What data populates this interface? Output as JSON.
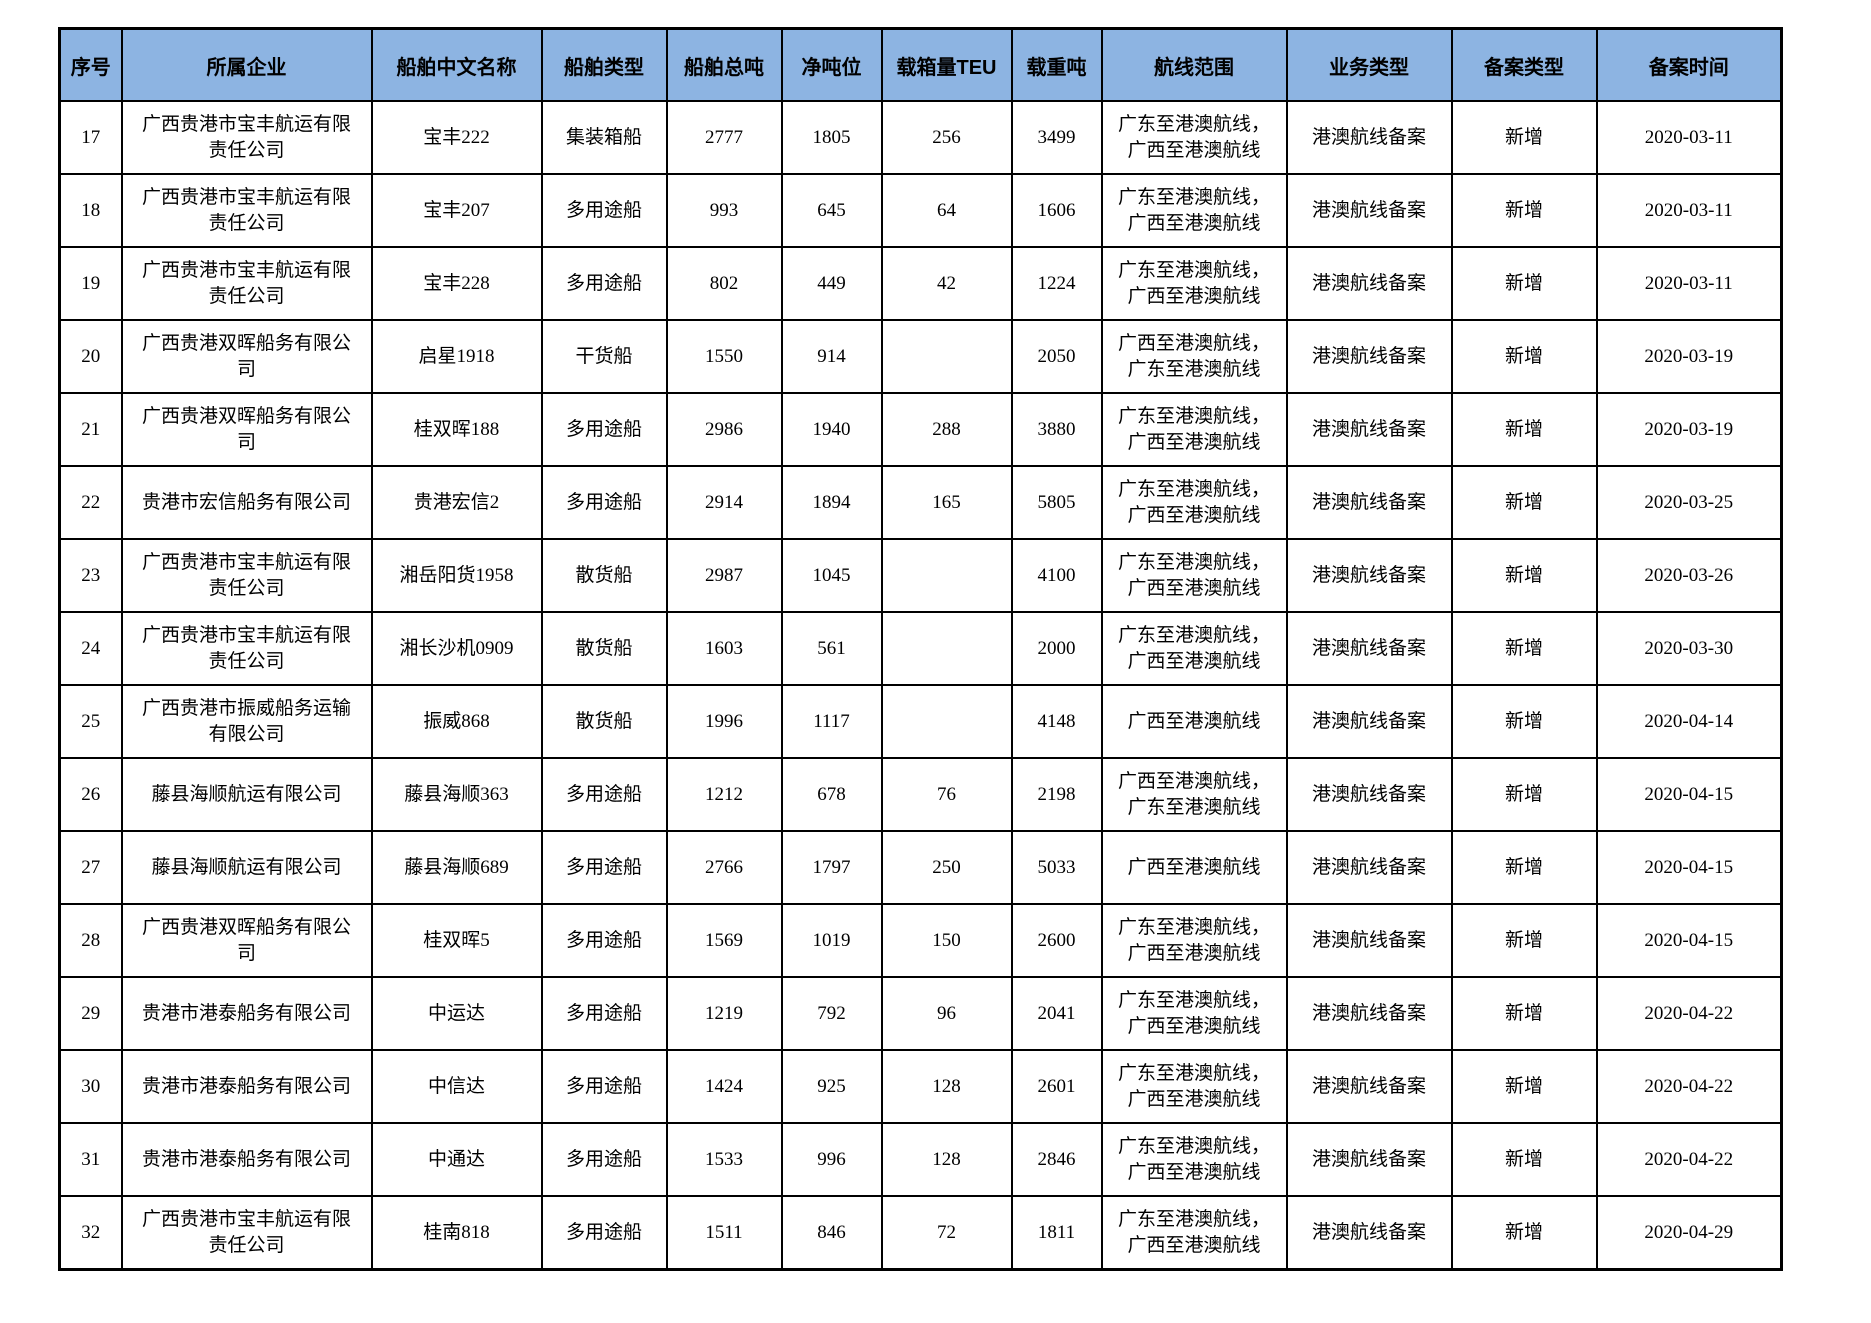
{
  "colors": {
    "header_bg": "#8DB4E2",
    "border": "#000000",
    "text": "#000000"
  },
  "table": {
    "columns": [
      {
        "key": "seq",
        "label": "序号"
      },
      {
        "key": "company",
        "label": "所属企业"
      },
      {
        "key": "ship_name",
        "label": "船舶中文名称"
      },
      {
        "key": "ship_type",
        "label": "船舶类型"
      },
      {
        "key": "gross",
        "label": "船舶总吨"
      },
      {
        "key": "net",
        "label": "净吨位"
      },
      {
        "key": "teu",
        "label": "载箱量TEU"
      },
      {
        "key": "dwt",
        "label": "载重吨"
      },
      {
        "key": "route",
        "label": "航线范围"
      },
      {
        "key": "business",
        "label": "业务类型"
      },
      {
        "key": "filing",
        "label": "备案类型"
      },
      {
        "key": "date",
        "label": "备案时间"
      }
    ],
    "rows": [
      {
        "seq": "17",
        "company": "广西贵港市宝丰航运有限责任公司",
        "ship_name": "宝丰222",
        "ship_type": "集装箱船",
        "gross": "2777",
        "net": "1805",
        "teu": "256",
        "dwt": "3499",
        "route": "广东至港澳航线，广西至港澳航线",
        "business": "港澳航线备案",
        "filing": "新增",
        "date": "2020-03-11"
      },
      {
        "seq": "18",
        "company": "广西贵港市宝丰航运有限责任公司",
        "ship_name": "宝丰207",
        "ship_type": "多用途船",
        "gross": "993",
        "net": "645",
        "teu": "64",
        "dwt": "1606",
        "route": "广东至港澳航线，广西至港澳航线",
        "business": "港澳航线备案",
        "filing": "新增",
        "date": "2020-03-11"
      },
      {
        "seq": "19",
        "company": "广西贵港市宝丰航运有限责任公司",
        "ship_name": "宝丰228",
        "ship_type": "多用途船",
        "gross": "802",
        "net": "449",
        "teu": "42",
        "dwt": "1224",
        "route": "广东至港澳航线，广西至港澳航线",
        "business": "港澳航线备案",
        "filing": "新增",
        "date": "2020-03-11"
      },
      {
        "seq": "20",
        "company": "广西贵港双晖船务有限公司",
        "ship_name": "启星1918",
        "ship_type": "干货船",
        "gross": "1550",
        "net": "914",
        "teu": "",
        "dwt": "2050",
        "route": "广西至港澳航线，广东至港澳航线",
        "business": "港澳航线备案",
        "filing": "新增",
        "date": "2020-03-19"
      },
      {
        "seq": "21",
        "company": "广西贵港双晖船务有限公司",
        "ship_name": "桂双晖188",
        "ship_type": "多用途船",
        "gross": "2986",
        "net": "1940",
        "teu": "288",
        "dwt": "3880",
        "route": "广东至港澳航线，广西至港澳航线",
        "business": "港澳航线备案",
        "filing": "新增",
        "date": "2020-03-19"
      },
      {
        "seq": "22",
        "company": "贵港市宏信船务有限公司",
        "ship_name": "贵港宏信2",
        "ship_type": "多用途船",
        "gross": "2914",
        "net": "1894",
        "teu": "165",
        "dwt": "5805",
        "route": "广东至港澳航线，广西至港澳航线",
        "business": "港澳航线备案",
        "filing": "新增",
        "date": "2020-03-25"
      },
      {
        "seq": "23",
        "company": "广西贵港市宝丰航运有限责任公司",
        "ship_name": "湘岳阳货1958",
        "ship_type": "散货船",
        "gross": "2987",
        "net": "1045",
        "teu": "",
        "dwt": "4100",
        "route": "广东至港澳航线，广西至港澳航线",
        "business": "港澳航线备案",
        "filing": "新增",
        "date": "2020-03-26"
      },
      {
        "seq": "24",
        "company": "广西贵港市宝丰航运有限责任公司",
        "ship_name": "湘长沙机0909",
        "ship_type": "散货船",
        "gross": "1603",
        "net": "561",
        "teu": "",
        "dwt": "2000",
        "route": "广东至港澳航线，广西至港澳航线",
        "business": "港澳航线备案",
        "filing": "新增",
        "date": "2020-03-30"
      },
      {
        "seq": "25",
        "company": "广西贵港市振威船务运输有限公司",
        "ship_name": "振威868",
        "ship_type": "散货船",
        "gross": "1996",
        "net": "1117",
        "teu": "",
        "dwt": "4148",
        "route": "广西至港澳航线",
        "business": "港澳航线备案",
        "filing": "新增",
        "date": "2020-04-14"
      },
      {
        "seq": "26",
        "company": "藤县海顺航运有限公司",
        "ship_name": "藤县海顺363",
        "ship_type": "多用途船",
        "gross": "1212",
        "net": "678",
        "teu": "76",
        "dwt": "2198",
        "route": "广西至港澳航线，广东至港澳航线",
        "business": "港澳航线备案",
        "filing": "新增",
        "date": "2020-04-15"
      },
      {
        "seq": "27",
        "company": "藤县海顺航运有限公司",
        "ship_name": "藤县海顺689",
        "ship_type": "多用途船",
        "gross": "2766",
        "net": "1797",
        "teu": "250",
        "dwt": "5033",
        "route": "广西至港澳航线",
        "business": "港澳航线备案",
        "filing": "新增",
        "date": "2020-04-15"
      },
      {
        "seq": "28",
        "company": "广西贵港双晖船务有限公司",
        "ship_name": "桂双晖5",
        "ship_type": "多用途船",
        "gross": "1569",
        "net": "1019",
        "teu": "150",
        "dwt": "2600",
        "route": "广东至港澳航线，广西至港澳航线",
        "business": "港澳航线备案",
        "filing": "新增",
        "date": "2020-04-15"
      },
      {
        "seq": "29",
        "company": "贵港市港泰船务有限公司",
        "ship_name": "中运达",
        "ship_type": "多用途船",
        "gross": "1219",
        "net": "792",
        "teu": "96",
        "dwt": "2041",
        "route": "广东至港澳航线，广西至港澳航线",
        "business": "港澳航线备案",
        "filing": "新增",
        "date": "2020-04-22"
      },
      {
        "seq": "30",
        "company": "贵港市港泰船务有限公司",
        "ship_name": "中信达",
        "ship_type": "多用途船",
        "gross": "1424",
        "net": "925",
        "teu": "128",
        "dwt": "2601",
        "route": "广东至港澳航线，广西至港澳航线",
        "business": "港澳航线备案",
        "filing": "新增",
        "date": "2020-04-22"
      },
      {
        "seq": "31",
        "company": "贵港市港泰船务有限公司",
        "ship_name": "中通达",
        "ship_type": "多用途船",
        "gross": "1533",
        "net": "996",
        "teu": "128",
        "dwt": "2846",
        "route": "广东至港澳航线，广西至港澳航线",
        "business": "港澳航线备案",
        "filing": "新增",
        "date": "2020-04-22"
      },
      {
        "seq": "32",
        "company": "广西贵港市宝丰航运有限责任公司",
        "ship_name": "桂南818",
        "ship_type": "多用途船",
        "gross": "1511",
        "net": "846",
        "teu": "72",
        "dwt": "1811",
        "route": "广东至港澳航线，广西至港澳航线",
        "business": "港澳航线备案",
        "filing": "新增",
        "date": "2020-04-29"
      }
    ]
  }
}
